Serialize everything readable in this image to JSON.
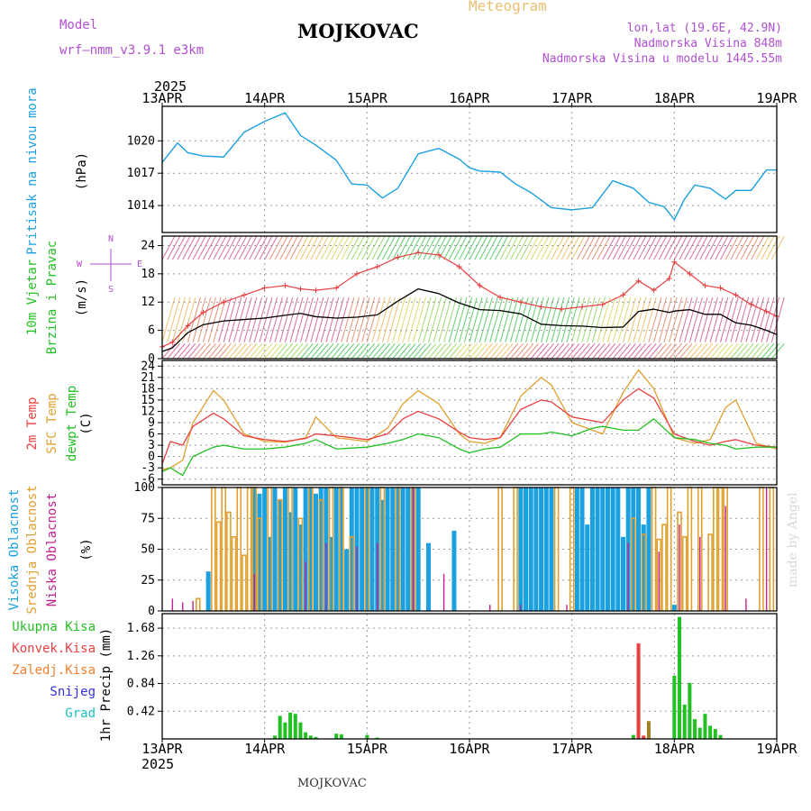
{
  "header": {
    "model_label": "Model",
    "model_name": "wrf—nmm_v3.9.1  e3km",
    "station": "MOJKOVAC",
    "meteogram": "Meteogram",
    "lonlat": "lon,lat (19.6E, 42.9N)",
    "elevation": "Nadmorska Visina 848m",
    "model_elevation": "Nadmorska Visina u modelu 1445.55m",
    "footer_station": "MOJKOVAC",
    "credit": "made by Angel"
  },
  "colors": {
    "pressure": "#1ba0e0",
    "temp2m": "#e84040",
    "sfc": "#e0a030",
    "dew": "#22c022",
    "high_cloud": "#1ba0e0",
    "mid_cloud": "#e0a030",
    "low_cloud": "#c02090",
    "precip_total": "#22c022",
    "precip_conv": "#e84040",
    "precip_frz": "#f08030",
    "snow": "#3030e0",
    "hail": "#20c0c0",
    "model_label": "#b050d0",
    "meteogram": "#e8c070",
    "info": "#b050d0"
  },
  "chart_data": [
    {
      "id": "pressure",
      "type": "line",
      "year": "2025",
      "x_ticks": [
        "13APR",
        "14APR",
        "15APR",
        "16APR",
        "17APR",
        "18APR",
        "19APR"
      ],
      "ylabel": [
        "Pritisak na nivou mora",
        "(hPa)"
      ],
      "yticks": [
        1014,
        1017,
        1020
      ],
      "ylim": [
        1011.5,
        1023.2
      ],
      "x": [
        0,
        0.15,
        0.25,
        0.4,
        0.6,
        0.8,
        1.0,
        1.2,
        1.35,
        1.5,
        1.7,
        1.85,
        2.0,
        2.15,
        2.3,
        2.5,
        2.7,
        2.9,
        3.0,
        3.1,
        3.3,
        3.45,
        3.6,
        3.8,
        4.0,
        4.2,
        4.4,
        4.6,
        4.75,
        4.9,
        5.0,
        5.1,
        5.2,
        5.35,
        5.5,
        5.6,
        5.75,
        5.9,
        6.0
      ],
      "values": [
        1018.0,
        1019.8,
        1018.9,
        1018.6,
        1018.5,
        1020.8,
        1021.8,
        1022.6,
        1020.5,
        1019.6,
        1018.2,
        1016.0,
        1015.9,
        1014.7,
        1015.6,
        1018.8,
        1019.3,
        1018.3,
        1017.5,
        1017.2,
        1017.1,
        1016.0,
        1015.2,
        1013.8,
        1013.6,
        1013.8,
        1016.3,
        1015.6,
        1014.3,
        1013.9,
        1012.7,
        1014.6,
        1015.9,
        1015.6,
        1014.6,
        1015.4,
        1015.4,
        1017.3,
        1017.3
      ],
      "xmin": 0,
      "xmax": 6
    },
    {
      "id": "wind",
      "type": "line",
      "ylabel": [
        "10m Vjetar",
        "Brzina i Pravac",
        "(m/s)"
      ],
      "direction_legend": [
        "N",
        "W",
        "S",
        "E"
      ],
      "yticks": [
        0,
        6,
        12,
        18,
        24
      ],
      "ylim": [
        0,
        26
      ],
      "x": [
        0,
        0.1,
        0.25,
        0.4,
        0.6,
        0.8,
        1.0,
        1.2,
        1.35,
        1.5,
        1.7,
        1.9,
        2.1,
        2.3,
        2.5,
        2.7,
        2.9,
        3.1,
        3.3,
        3.5,
        3.7,
        3.9,
        4.1,
        4.3,
        4.5,
        4.65,
        4.8,
        4.95,
        5.0,
        5.15,
        5.3,
        5.45,
        5.6,
        5.75,
        5.9,
        6.0
      ],
      "speed": [
        1.5,
        2.3,
        5.5,
        7.2,
        8.0,
        8.3,
        8.6,
        9.2,
        9.6,
        8.9,
        8.6,
        8.8,
        9.3,
        12.2,
        14.8,
        13.8,
        11.8,
        10.4,
        10.2,
        9.5,
        7.3,
        7.0,
        6.9,
        6.6,
        6.7,
        10.0,
        10.5,
        9.8,
        10.1,
        10.4,
        9.4,
        9.4,
        7.6,
        7.1,
        6.0,
        5.1
      ],
      "gust": [
        2.5,
        3.5,
        7.0,
        9.8,
        12.0,
        13.5,
        15.0,
        15.5,
        14.8,
        14.5,
        15.0,
        18.0,
        19.5,
        21.5,
        22.5,
        22.0,
        19.5,
        15.5,
        13.0,
        12.0,
        11.0,
        10.5,
        11.0,
        11.5,
        13.5,
        16.5,
        14.5,
        17.0,
        20.5,
        18.0,
        15.5,
        15.0,
        13.5,
        11.5,
        10.0,
        9.0
      ]
    },
    {
      "id": "temperature",
      "type": "line",
      "ylabel": [
        "2m Temp",
        "SFC Temp",
        "dewpt Temp",
        "(C)"
      ],
      "yticks": [
        -6,
        -3,
        0,
        3,
        6,
        9,
        12,
        15,
        18,
        21,
        24
      ],
      "ylim": [
        -7.5,
        25.5
      ],
      "x": [
        0,
        0.08,
        0.2,
        0.3,
        0.5,
        0.6,
        0.8,
        1.0,
        1.2,
        1.4,
        1.5,
        1.7,
        2.0,
        2.2,
        2.35,
        2.5,
        2.7,
        2.9,
        3.0,
        3.15,
        3.3,
        3.5,
        3.7,
        3.8,
        4.0,
        4.2,
        4.3,
        4.5,
        4.65,
        4.8,
        5.0,
        5.2,
        5.35,
        5.5,
        5.6,
        5.8,
        6.0
      ],
      "temp2m": [
        -2.0,
        4.0,
        3.0,
        8.0,
        11.5,
        10.0,
        5.5,
        4.5,
        4.0,
        4.8,
        6.0,
        5.5,
        4.5,
        6.0,
        10.0,
        12.0,
        10.0,
        6.5,
        5.0,
        4.5,
        5.0,
        12.5,
        15.0,
        14.5,
        10.5,
        9.5,
        9.0,
        15.0,
        18.0,
        15.5,
        6.0,
        4.0,
        3.0,
        4.0,
        4.5,
        3.0,
        2.5
      ],
      "sfc": [
        -3.5,
        -3.0,
        -1.0,
        9.0,
        17.5,
        15.0,
        6.0,
        4.0,
        3.8,
        5.0,
        10.5,
        5.0,
        4.0,
        7.5,
        14.0,
        17.5,
        14.0,
        6.0,
        4.0,
        3.5,
        5.0,
        16.0,
        21.0,
        19.0,
        9.0,
        7.0,
        6.0,
        17.0,
        23.0,
        18.0,
        5.0,
        3.5,
        4.5,
        13.0,
        15.0,
        3.5,
        2.0
      ],
      "dew": [
        -4.0,
        -3.0,
        -5.0,
        0.0,
        2.5,
        3.0,
        2.0,
        2.0,
        2.5,
        3.5,
        4.5,
        2.0,
        2.5,
        3.5,
        4.5,
        6.0,
        5.0,
        2.0,
        1.0,
        2.0,
        2.5,
        6.0,
        6.0,
        6.5,
        5.5,
        7.5,
        8.0,
        7.0,
        7.0,
        10.0,
        5.0,
        4.5,
        3.5,
        3.0,
        2.0,
        2.5,
        2.5
      ]
    },
    {
      "id": "clouds",
      "type": "bar",
      "ylabel": [
        "Visoka Oblacnost",
        "Srednja Oblacnost",
        "Niska Oblacnost",
        "(%)"
      ],
      "yticks": [
        0,
        25,
        50,
        75,
        100
      ],
      "ylim": [
        0,
        100
      ],
      "series": [
        {
          "name": "Visoka Oblacnost",
          "x": [
            0.45,
            0.9,
            0.95,
            1.0,
            1.05,
            1.1,
            1.15,
            1.2,
            1.25,
            1.3,
            1.35,
            1.4,
            1.45,
            1.5,
            1.55,
            1.6,
            1.65,
            1.7,
            1.75,
            1.8,
            1.85,
            1.9,
            1.95,
            2.0,
            2.05,
            2.1,
            2.15,
            2.2,
            2.25,
            2.3,
            2.35,
            2.4,
            2.45,
            2.5,
            2.6,
            2.85,
            3.5,
            3.55,
            3.6,
            3.65,
            3.7,
            3.75,
            3.8,
            4.05,
            4.1,
            4.15,
            4.2,
            4.25,
            4.3,
            4.35,
            4.4,
            4.45,
            4.5,
            4.55,
            4.6,
            4.65,
            4.7,
            4.75,
            5.0
          ],
          "values": [
            32,
            100,
            95,
            100,
            60,
            100,
            90,
            100,
            80,
            100,
            70,
            100,
            100,
            95,
            100,
            100,
            60,
            100,
            100,
            50,
            100,
            100,
            100,
            100,
            100,
            100,
            90,
            100,
            100,
            100,
            100,
            100,
            100,
            100,
            55,
            65,
            100,
            100,
            100,
            100,
            100,
            100,
            100,
            100,
            100,
            70,
            100,
            100,
            100,
            100,
            100,
            100,
            60,
            100,
            100,
            100,
            70,
            100,
            5
          ]
        },
        {
          "name": "Srednja Oblacnost",
          "x": [
            0.35,
            0.5,
            0.55,
            0.6,
            0.65,
            0.7,
            0.75,
            0.8,
            0.85,
            0.9,
            0.95,
            1.05,
            1.15,
            1.25,
            1.35,
            1.45,
            1.55,
            1.65,
            1.75,
            1.85,
            2.0,
            2.15,
            2.3,
            2.45,
            3.3,
            3.45,
            3.85,
            4.0,
            4.6,
            4.7,
            4.8,
            4.85,
            4.9,
            4.95,
            5.05,
            5.1,
            5.15,
            5.25,
            5.35,
            5.4,
            5.45,
            5.5,
            5.85,
            5.95
          ],
          "values": [
            10,
            100,
            72,
            100,
            80,
            60,
            100,
            45,
            100,
            100,
            75,
            100,
            90,
            100,
            75,
            100,
            90,
            100,
            100,
            60,
            100,
            100,
            100,
            100,
            100,
            100,
            100,
            100,
            75,
            62,
            100,
            58,
            70,
            100,
            80,
            60,
            100,
            100,
            62,
            100,
            100,
            100,
            100,
            100
          ]
        },
        {
          "name": "Niska Oblacnost",
          "x": [
            0.1,
            0.2,
            0.3,
            0.9,
            1.4,
            1.6,
            1.9,
            2.1,
            2.45,
            2.75,
            3.2,
            3.5,
            3.95,
            4.55,
            4.85,
            5.05,
            5.25,
            5.5,
            5.7,
            5.9
          ],
          "values": [
            10,
            7,
            8,
            30,
            40,
            55,
            52,
            55,
            100,
            30,
            5,
            5,
            5,
            55,
            48,
            70,
            60,
            85,
            10,
            100
          ]
        }
      ]
    },
    {
      "id": "precip",
      "type": "bar",
      "ylabel": [
        "1hr Precip",
        "(mm)"
      ],
      "legend": [
        "Ukupna Kisa",
        "Konvek.Kisa",
        "Zaledj.Kisa",
        "Snijeg",
        "Grad"
      ],
      "yticks": [
        0.42,
        0.84,
        1.26,
        1.68
      ],
      "ylim": [
        0,
        1.9
      ],
      "x_ticks": [
        "13APR",
        "14APR",
        "15APR",
        "16APR",
        "17APR",
        "18APR",
        "19APR"
      ],
      "year": "2025",
      "series": [
        {
          "name": "Ukupna Kisa",
          "x": [
            1.1,
            1.15,
            1.2,
            1.25,
            1.3,
            1.35,
            1.4,
            1.45,
            1.5,
            1.7,
            1.75,
            2.0,
            2.1,
            4.6,
            4.65,
            4.7,
            5.0,
            5.05,
            5.1,
            5.15,
            5.2,
            5.25,
            5.3,
            5.35,
            5.4,
            5.45
          ],
          "values": [
            0.05,
            0.35,
            0.25,
            0.4,
            0.38,
            0.25,
            0.1,
            0.05,
            0.03,
            0.08,
            0.07,
            0.06,
            0.02,
            0.06,
            1.25,
            0.03,
            0.96,
            1.85,
            0.52,
            0.85,
            0.3,
            0.17,
            0.38,
            0.2,
            0.15,
            0.06
          ]
        },
        {
          "name": "Konvek.Kisa",
          "x": [
            4.65,
            4.7
          ],
          "values": [
            1.45,
            0.05
          ]
        },
        {
          "name": "Zaledj.Kisa",
          "x": [
            4.75
          ],
          "values": [
            0.27
          ]
        }
      ]
    }
  ]
}
